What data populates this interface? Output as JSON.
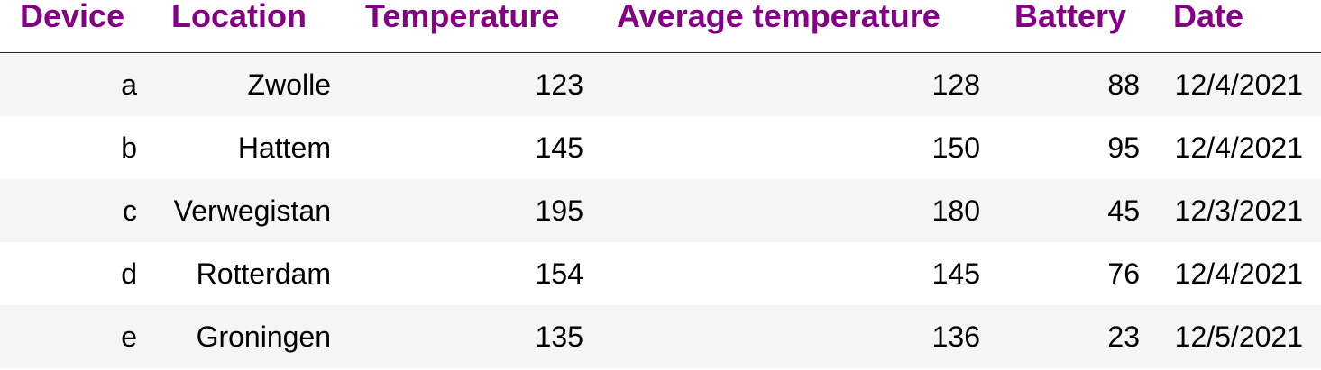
{
  "table": {
    "columns": [
      "Device",
      "Location",
      "Temperature",
      "Average temperature",
      "Battery",
      "Date"
    ],
    "rows": [
      {
        "device": "a",
        "location": "Zwolle",
        "temperature": "123",
        "average_temperature": "128",
        "battery": "88",
        "date": "12/4/2021"
      },
      {
        "device": "b",
        "location": "Hattem",
        "temperature": "145",
        "average_temperature": "150",
        "battery": "95",
        "date": "12/4/2021"
      },
      {
        "device": "c",
        "location": "Verwegistan",
        "temperature": "195",
        "average_temperature": "180",
        "battery": "45",
        "date": "12/3/2021"
      },
      {
        "device": "d",
        "location": "Rotterdam",
        "temperature": "154",
        "average_temperature": "145",
        "battery": "76",
        "date": "12/4/2021"
      },
      {
        "device": "e",
        "location": "Groningen",
        "temperature": "135",
        "average_temperature": "136",
        "battery": "23",
        "date": "12/5/2021"
      }
    ]
  },
  "colors": {
    "header_text": "#800080",
    "row_stripe": "#f5f5f5",
    "header_rule": "#222222"
  }
}
